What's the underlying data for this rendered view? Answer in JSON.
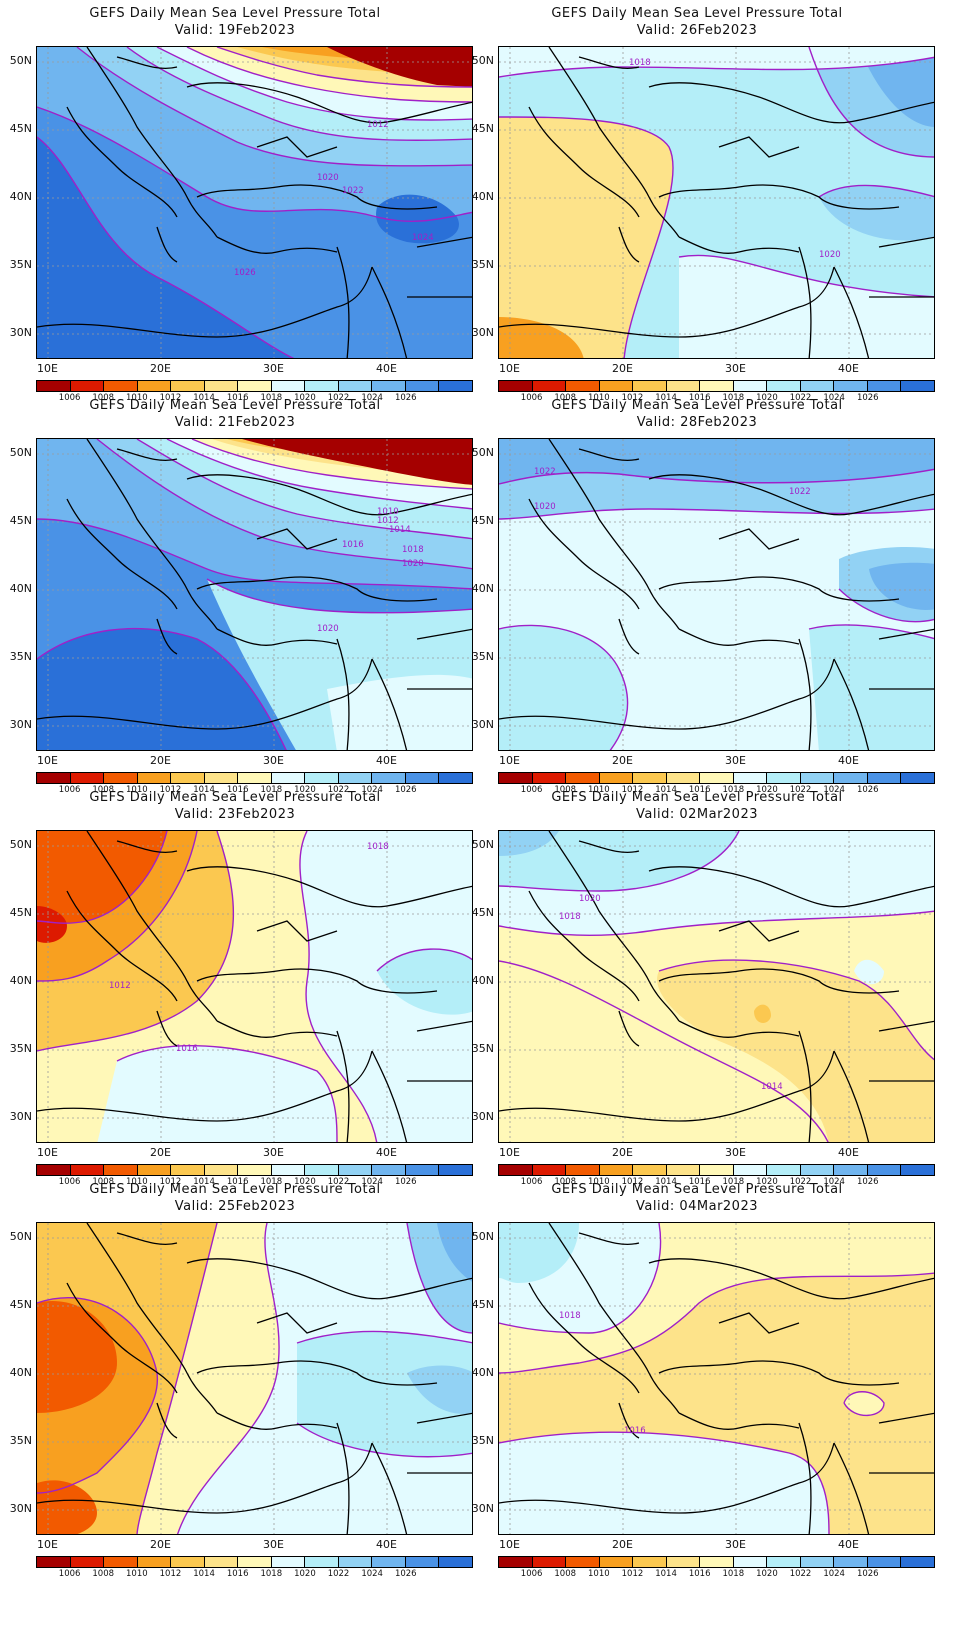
{
  "title_line": "GEFS Daily Mean Sea Level Pressure Total",
  "lat_labels": [
    "50N",
    "45N",
    "40N",
    "35N",
    "30N"
  ],
  "lon_labels": [
    "10E",
    "20E",
    "30E",
    "40E"
  ],
  "colorbar": {
    "colors": [
      "#a50000",
      "#dd1a00",
      "#f25a00",
      "#f8a020",
      "#fbc850",
      "#fde38a",
      "#fff8b8",
      "#e3fbff",
      "#b4eef8",
      "#92d2f4",
      "#70b5ef",
      "#4a92e6",
      "#2a70d8"
    ],
    "labels": [
      "1006",
      "1008",
      "1010",
      "1012",
      "1014",
      "1016",
      "1018",
      "1020",
      "1022",
      "1024",
      "1026"
    ]
  },
  "panels": [
    {
      "valid": "Valid: 19Feb2023",
      "labels": [
        {
          "t": "1012"
        },
        {
          "t": "1020"
        },
        {
          "t": "1022"
        },
        {
          "t": "1026"
        },
        {
          "t": "1024"
        }
      ]
    },
    {
      "valid": "Valid: 26Feb2023",
      "labels": [
        {
          "t": "1018"
        },
        {
          "t": "1020"
        }
      ]
    },
    {
      "valid": "Valid: 21Feb2023",
      "labels": [
        {
          "t": "1010"
        },
        {
          "t": "1012"
        },
        {
          "t": "1014"
        },
        {
          "t": "1016"
        },
        {
          "t": "1018"
        },
        {
          "t": "1020"
        },
        {
          "t": "1020"
        }
      ]
    },
    {
      "valid": "Valid: 28Feb2023",
      "labels": [
        {
          "t": "1022"
        },
        {
          "t": "1020"
        },
        {
          "t": "1022"
        }
      ]
    },
    {
      "valid": "Valid: 23Feb2023",
      "labels": [
        {
          "t": "1018"
        },
        {
          "t": "1012"
        },
        {
          "t": "1016"
        }
      ]
    },
    {
      "valid": "Valid: 02Mar2023",
      "labels": [
        {
          "t": "1020"
        },
        {
          "t": "1018"
        },
        {
          "t": "1014"
        }
      ]
    },
    {
      "valid": "Valid: 25Feb2023",
      "labels": []
    },
    {
      "valid": "Valid: 04Mar2023",
      "labels": [
        {
          "t": "1018"
        },
        {
          "t": "1016"
        }
      ]
    }
  ]
}
